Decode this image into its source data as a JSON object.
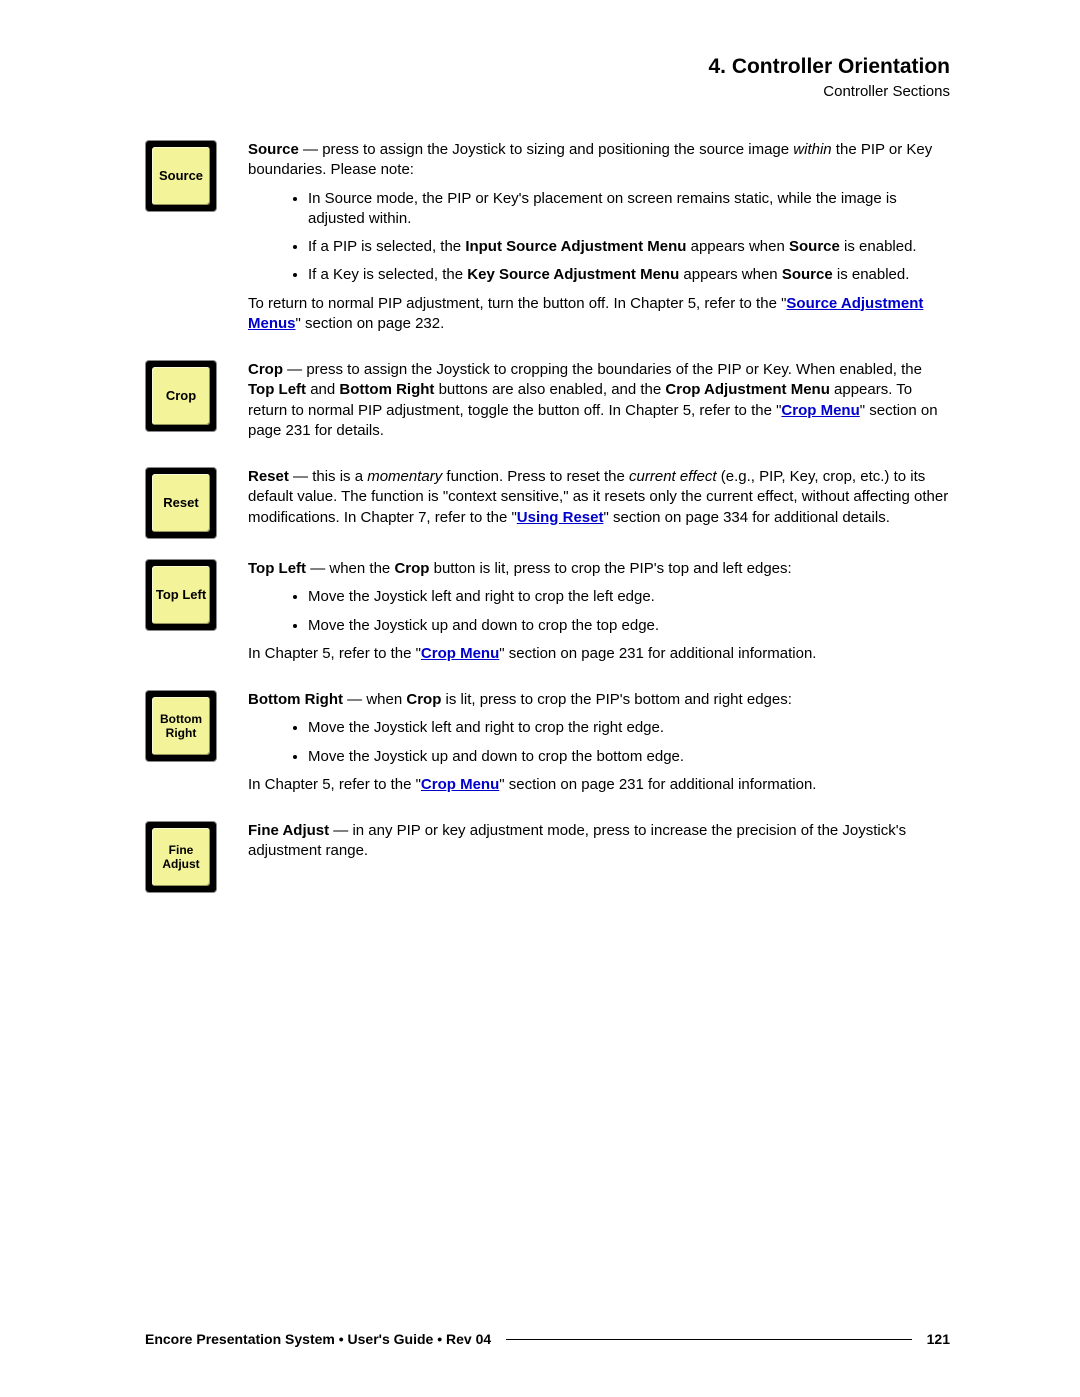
{
  "header": {
    "chapter": "4.  Controller Orientation",
    "subsection": "Controller Sections"
  },
  "buttons": {
    "source": "Source",
    "crop": "Crop",
    "reset": "Reset",
    "topleft": "Top Left",
    "bottomright": "Bottom Right",
    "fineadjust": "Fine Adjust"
  },
  "source": {
    "intro1": "Source",
    "intro2": " — press to assign the Joystick to sizing and positioning the source image ",
    "intro3": "within",
    "intro4": " the PIP or Key boundaries.  Please note:",
    "b1": "In Source mode, the PIP or Key's placement on screen remains static, while the image is adjusted within.",
    "b2a": "If a PIP is selected, the ",
    "b2b": "Input Source Adjustment Menu",
    "b2c": " appears when ",
    "b2d": "Source",
    "b2e": " is enabled.",
    "b3a": "If a Key is selected, the ",
    "b3b": "Key Source Adjustment Menu",
    "b3c": " appears when ",
    "b3d": "Source",
    "b3e": " is enabled.",
    "ret1": "To return to normal PIP adjustment, turn the button off.  In Chapter 5, refer to the \"",
    "retlink": "Source Adjustment Menus",
    "ret2": "\" section on page 232."
  },
  "crop": {
    "p1a": "Crop",
    "p1b": " — press to assign the Joystick to cropping the boundaries of the PIP or Key.  When enabled, the ",
    "p1c": "Top Left",
    "p1d": " and ",
    "p1e": "Bottom Right",
    "p1f": " buttons are also enabled, and the ",
    "p1g": "Crop Adjustment Menu",
    "p1h": " appears.  To return to normal PIP adjustment, toggle the button off.  In Chapter 5, refer to the \"",
    "p1link": "Crop Menu",
    "p1i": "\" section on page 231 for details."
  },
  "reset": {
    "p1a": "Reset",
    "p1b": " — this is a ",
    "p1c": "momentary",
    "p1d": " function.  Press to reset the ",
    "p1e": "current effect",
    "p1f": " (e.g., PIP, Key, crop, etc.) to its default value.  The function is \"context sensitive,\" as it resets only the current effect, without affecting other modifications.  In Chapter 7, refer to the \"",
    "p1link": "Using Reset",
    "p1g": "\" section on page 334 for additional details."
  },
  "topleft": {
    "p1a": "Top Left",
    "p1b": " — when the ",
    "p1c": "Crop",
    "p1d": " button is lit, press to crop the PIP's top and left edges:",
    "b1": "Move the Joystick left and right to crop the left edge.",
    "b2": "Move the Joystick up and down to crop the top edge.",
    "p2a": "In Chapter 5, refer to the \"",
    "p2link": "Crop Menu",
    "p2b": "\" section on page 231 for additional information."
  },
  "bottomright": {
    "p1a": "Bottom Right",
    "p1b": " — when ",
    "p1c": "Crop",
    "p1d": " is lit, press to crop the PIP's bottom and right edges:",
    "b1": "Move the Joystick left and right to crop the right edge.",
    "b2": "Move the Joystick up and down to crop the bottom edge.",
    "p2a": "In Chapter 5, refer to the \"",
    "p2link": "Crop Menu",
    "p2b": "\" section on page 231 for additional information."
  },
  "fineadjust": {
    "p1a": "Fine Adjust",
    "p1b": " — in any PIP or key adjustment mode, press to increase the precision of the Joystick's adjustment range."
  },
  "footer": {
    "title": "Encore Presentation System  •  User's Guide  •  Rev 04",
    "page": "121"
  }
}
